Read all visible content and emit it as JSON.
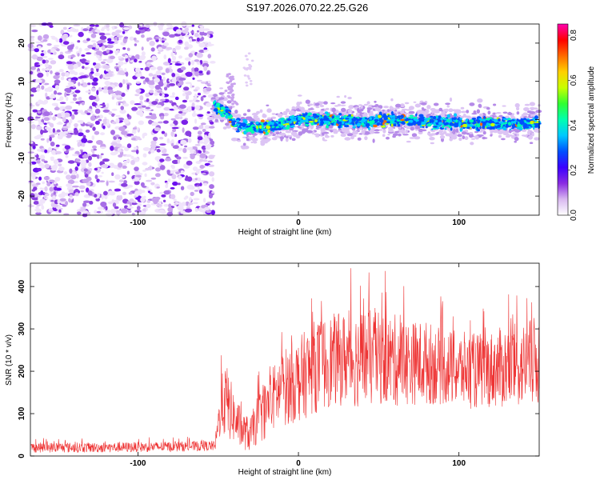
{
  "title": "S197.2026.070.22.25.G26",
  "chart_data": [
    {
      "type": "heatmap",
      "name": "spectrogram",
      "xlabel": "Height of straight line (km)",
      "ylabel": "Frequency (Hz)",
      "xlim": [
        -167,
        150
      ],
      "ylim": [
        -25,
        25
      ],
      "x_ticks": [
        -100,
        0,
        100
      ],
      "x_tick_labels": [
        "-100",
        "0",
        "100"
      ],
      "y_ticks": [
        -20,
        -10,
        0,
        10,
        20
      ],
      "y_tick_labels": [
        "-20",
        "-10",
        "0",
        "10",
        "20"
      ],
      "noise_region_x": [
        -167,
        -53
      ],
      "signal_trace": {
        "start_x": -53,
        "end_x": 150,
        "x": [
          -53,
          -45,
          -40,
          -35,
          -30,
          -20,
          -10,
          0,
          20,
          40,
          60,
          80,
          100,
          120,
          150
        ],
        "y": [
          4,
          2,
          -1,
          -2,
          -2,
          -2,
          -1,
          0,
          0,
          -0.5,
          0,
          -0.5,
          -1,
          -1,
          -1
        ]
      },
      "colorbar": {
        "label": "Normalized spectral amplitude",
        "range": [
          0.0,
          0.85
        ],
        "ticks": [
          0.0,
          0.2,
          0.4,
          0.6,
          0.8
        ],
        "tick_labels": [
          "0.0",
          "0.2",
          "0.4",
          "0.6",
          "0.8"
        ],
        "colors": [
          "#ffffff",
          "#d8b8f0",
          "#8a2be2",
          "#3a00ff",
          "#0050ff",
          "#00c8ff",
          "#00ffb0",
          "#30ff30",
          "#c8ff00",
          "#ffd000",
          "#ff6a00",
          "#ff0000",
          "#ff00b0"
        ]
      }
    },
    {
      "type": "line",
      "name": "snr",
      "xlabel": "Height of straight line (km)",
      "ylabel": "SNR (10 * v/v)",
      "xlim": [
        -167,
        150
      ],
      "ylim": [
        0,
        455
      ],
      "x_ticks": [
        -100,
        0,
        100
      ],
      "x_tick_labels": [
        "-100",
        "0",
        "100"
      ],
      "y_ticks": [
        0,
        100,
        200,
        300,
        400
      ],
      "y_tick_labels": [
        "0",
        "100",
        "200",
        "300",
        "400"
      ],
      "color": "#ee3333",
      "envelope": {
        "x": [
          -167,
          -120,
          -80,
          -52,
          -48,
          -45,
          -40,
          -35,
          -30,
          -25,
          -20,
          -15,
          -10,
          0,
          10,
          20,
          30,
          40,
          50,
          60,
          70,
          80,
          90,
          100,
          110,
          120,
          130,
          140,
          150
        ],
        "mean": [
          20,
          20,
          22,
          24,
          120,
          130,
          90,
          60,
          50,
          90,
          110,
          140,
          160,
          180,
          210,
          225,
          230,
          230,
          230,
          225,
          220,
          220,
          210,
          205,
          200,
          205,
          210,
          215,
          225
        ],
        "spread": [
          12,
          12,
          12,
          12,
          70,
          90,
          60,
          45,
          40,
          60,
          70,
          80,
          90,
          100,
          110,
          110,
          110,
          120,
          110,
          110,
          100,
          100,
          90,
          90,
          90,
          90,
          100,
          100,
          110
        ]
      }
    }
  ]
}
